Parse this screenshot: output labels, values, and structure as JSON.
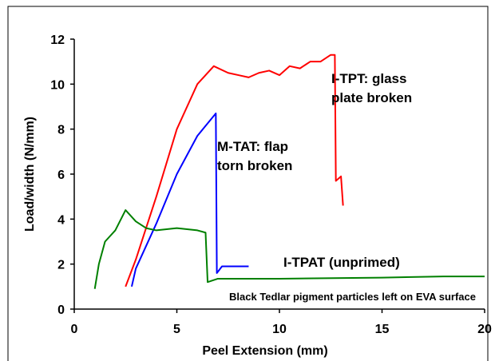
{
  "chart_data": {
    "type": "line",
    "xlabel": "Peel Extension (mm)",
    "ylabel": "Load/width (N/mm)",
    "xlim": [
      0,
      20
    ],
    "xticks": [
      0,
      5,
      10,
      15,
      20
    ],
    "ylim": [
      0,
      12
    ],
    "yticks": [
      0,
      2,
      4,
      6,
      8,
      10,
      12
    ],
    "series": [
      {
        "color": "#ff0000",
        "x": [
          2.5,
          3,
          4,
          5,
          6,
          6.8,
          7.5,
          8,
          8.5,
          9,
          9.5,
          10,
          10.5,
          11,
          11.5,
          12,
          12.5,
          12.7,
          12.75,
          13,
          13.1
        ],
        "values": [
          1.0,
          2.2,
          5,
          8,
          10,
          10.8,
          10.5,
          10.4,
          10.3,
          10.5,
          10.6,
          10.4,
          10.8,
          10.7,
          11.0,
          11.0,
          11.3,
          11.3,
          5.7,
          5.9,
          4.6
        ]
      },
      {
        "color": "#0000ff",
        "x": [
          2.8,
          3,
          4,
          5,
          6,
          6.9,
          6.95,
          7.2,
          8,
          8.5
        ],
        "values": [
          1.0,
          1.8,
          3.8,
          6,
          7.7,
          8.7,
          1.6,
          1.9,
          1.9,
          1.9
        ]
      },
      {
        "color": "#008000",
        "x": [
          1.0,
          1.2,
          1.5,
          2,
          2.5,
          3,
          3.5,
          4,
          5,
          6,
          6.4,
          6.5,
          7,
          10,
          15,
          18,
          20
        ],
        "values": [
          0.9,
          2.0,
          3.0,
          3.5,
          4.4,
          3.9,
          3.6,
          3.5,
          3.6,
          3.5,
          3.4,
          1.2,
          1.35,
          1.35,
          1.4,
          1.45,
          1.45
        ]
      }
    ],
    "annotations": [
      {
        "lines": [
          "I-TPT: glass",
          "plate broken"
        ]
      },
      {
        "lines": [
          "M-TAT: flap",
          "torn broken"
        ]
      },
      {
        "lines": [
          "I-TPAT (unprimed)"
        ]
      },
      {
        "lines": [
          "Black Tedlar pigment particles left on EVA surface"
        ]
      }
    ]
  }
}
